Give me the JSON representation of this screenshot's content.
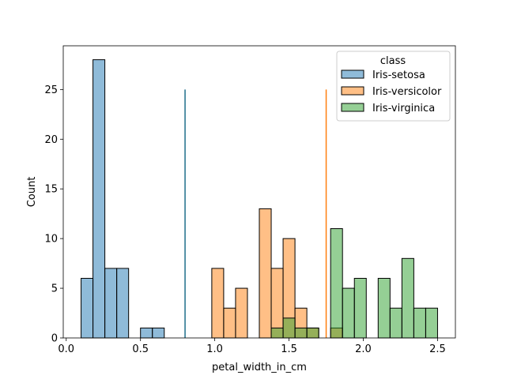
{
  "chart_data": {
    "type": "bar",
    "title": "",
    "xlabel": "petal_width_in_cm",
    "ylabel": "Count",
    "xlim": [
      -0.02,
      2.62
    ],
    "ylim": [
      0,
      29.4
    ],
    "xticks": [
      0.0,
      0.5,
      1.0,
      1.5,
      2.0,
      2.5
    ],
    "xtick_labels": [
      "0.0",
      "0.5",
      "1.0",
      "1.5",
      "2.0",
      "2.5"
    ],
    "yticks": [
      0,
      5,
      10,
      15,
      20,
      25
    ],
    "ytick_labels": [
      "0",
      "5",
      "10",
      "15",
      "20",
      "25"
    ],
    "bin_width": 0.08,
    "grid": false,
    "legend": {
      "title": "class",
      "placement": "top-right"
    },
    "series": [
      {
        "name": "Iris-setosa",
        "color": "#1f77b4",
        "bins": [
          {
            "x": 0.1,
            "count": 6
          },
          {
            "x": 0.18,
            "count": 28
          },
          {
            "x": 0.26,
            "count": 7
          },
          {
            "x": 0.34,
            "count": 7
          },
          {
            "x": 0.5,
            "count": 1
          },
          {
            "x": 0.58,
            "count": 1
          }
        ]
      },
      {
        "name": "Iris-versicolor",
        "color": "#ff7f0e",
        "bins": [
          {
            "x": 0.98,
            "count": 7
          },
          {
            "x": 1.06,
            "count": 3
          },
          {
            "x": 1.14,
            "count": 5
          },
          {
            "x": 1.3,
            "count": 13
          },
          {
            "x": 1.38,
            "count": 7
          },
          {
            "x": 1.46,
            "count": 10
          },
          {
            "x": 1.54,
            "count": 3
          },
          {
            "x": 1.62,
            "count": 1
          },
          {
            "x": 1.78,
            "count": 1
          }
        ]
      },
      {
        "name": "Iris-virginica",
        "color": "#2ca02c",
        "bins": [
          {
            "x": 1.38,
            "count": 1
          },
          {
            "x": 1.46,
            "count": 2
          },
          {
            "x": 1.54,
            "count": 1
          },
          {
            "x": 1.62,
            "count": 1
          },
          {
            "x": 1.78,
            "count": 11
          },
          {
            "x": 1.86,
            "count": 5
          },
          {
            "x": 1.94,
            "count": 6
          },
          {
            "x": 2.1,
            "count": 6
          },
          {
            "x": 2.18,
            "count": 3
          },
          {
            "x": 2.26,
            "count": 8
          },
          {
            "x": 2.34,
            "count": 3
          },
          {
            "x": 2.42,
            "count": 3
          }
        ]
      }
    ],
    "reference_lines": [
      {
        "x": 0.8,
        "y_top": 25,
        "color": "#1f6f8b"
      },
      {
        "x": 1.75,
        "y_top": 25,
        "color": "#ff7f0e"
      }
    ]
  }
}
